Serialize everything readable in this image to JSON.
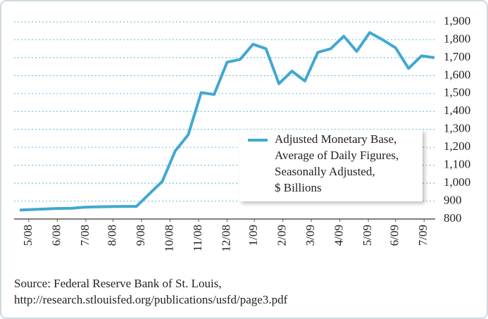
{
  "chart_data": {
    "type": "line",
    "x": [
      0,
      1,
      2,
      3,
      4,
      5,
      6,
      7,
      8,
      9,
      10,
      11,
      12,
      13,
      14,
      15,
      16,
      17,
      18,
      19,
      20,
      21,
      22,
      23,
      24,
      25,
      26,
      27,
      28,
      29,
      30,
      31,
      32
    ],
    "xlim": [
      0,
      32
    ],
    "xticks": [
      {
        "value": 0.7,
        "label": "5/08"
      },
      {
        "value": 2.9,
        "label": "6/08"
      },
      {
        "value": 5.1,
        "label": "7/08"
      },
      {
        "value": 7.2,
        "label": "8/08"
      },
      {
        "value": 9.4,
        "label": "9/08"
      },
      {
        "value": 11.6,
        "label": "10/08"
      },
      {
        "value": 13.8,
        "label": "11/08"
      },
      {
        "value": 16.0,
        "label": "12/08"
      },
      {
        "value": 18.1,
        "label": "1/09"
      },
      {
        "value": 20.3,
        "label": "2/09"
      },
      {
        "value": 22.5,
        "label": "3/09"
      },
      {
        "value": 24.7,
        "label": "4/09"
      },
      {
        "value": 26.9,
        "label": "5/09"
      },
      {
        "value": 29.0,
        "label": "6/09"
      },
      {
        "value": 31.2,
        "label": "7/09"
      }
    ],
    "series": [
      {
        "name": [
          "Adjusted Monetary Base,",
          "Average of Daily Figures,",
          "Seasonally Adjusted,",
          "$ Billions"
        ],
        "color": "#41a8d1",
        "values": [
          850,
          853,
          856,
          859,
          860,
          866,
          868,
          869,
          870,
          870,
          940,
          1010,
          1180,
          1270,
          1505,
          1495,
          1675,
          1690,
          1775,
          1750,
          1555,
          1625,
          1570,
          1730,
          1750,
          1820,
          1735,
          1840,
          1800,
          1755,
          1640,
          1710,
          1700
        ]
      }
    ],
    "ylim": [
      800,
      1900
    ],
    "yticks": [
      800,
      900,
      {
        "value": 1000,
        "label": "1,000"
      },
      {
        "value": 1100,
        "label": "1,100"
      },
      {
        "value": 1200,
        "label": "1,200"
      },
      {
        "value": 1300,
        "label": "1,300"
      },
      {
        "value": 1400,
        "label": "1,400"
      },
      {
        "value": 1500,
        "label": "1,500"
      },
      {
        "value": 1600,
        "label": "1,600"
      },
      {
        "value": 1700,
        "label": "1,700"
      },
      {
        "value": 1800,
        "label": "1,800"
      },
      {
        "value": 1900,
        "label": "1,900"
      }
    ],
    "grid": true,
    "source": [
      "Source: Federal Reserve Bank of St. Louis,",
      "http://research.stlouisfed.org/publications/usfd/page3.pdf"
    ]
  }
}
